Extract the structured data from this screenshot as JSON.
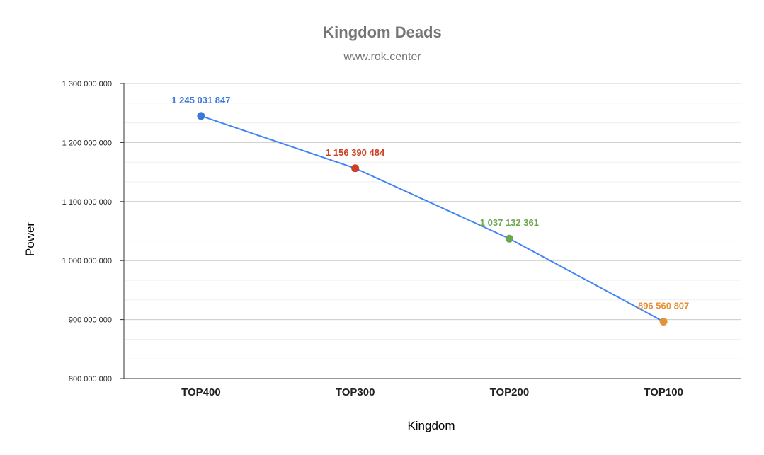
{
  "chart_data": {
    "type": "line",
    "title": "Kingdom Deads",
    "subtitle": "www.rok.center",
    "xlabel": "Kingdom",
    "ylabel": "Power",
    "categories": [
      "TOP400",
      "TOP300",
      "TOP200",
      "TOP100"
    ],
    "series": [
      {
        "values": [
          1245031847,
          1156390484,
          1037132361,
          896560807
        ],
        "labels": [
          "1 245 031 847",
          "1 156 390 484",
          "1 037 132 361",
          "896 560 807"
        ],
        "line_color": "#4285f4",
        "point_colors": [
          "#3c78d8",
          "#cc4125",
          "#6aa84f",
          "#e69138"
        ]
      }
    ],
    "ylim": [
      800000000,
      1300000000
    ],
    "yticks": [
      800000000,
      900000000,
      1000000000,
      1100000000,
      1200000000,
      1300000000
    ],
    "ytick_labels": [
      "800 000 000",
      "900 000 000",
      "1 000 000 000",
      "1 100 000 000",
      "1 200 000 000",
      "1 300 000 000"
    ],
    "grid": true,
    "legend": "none"
  }
}
